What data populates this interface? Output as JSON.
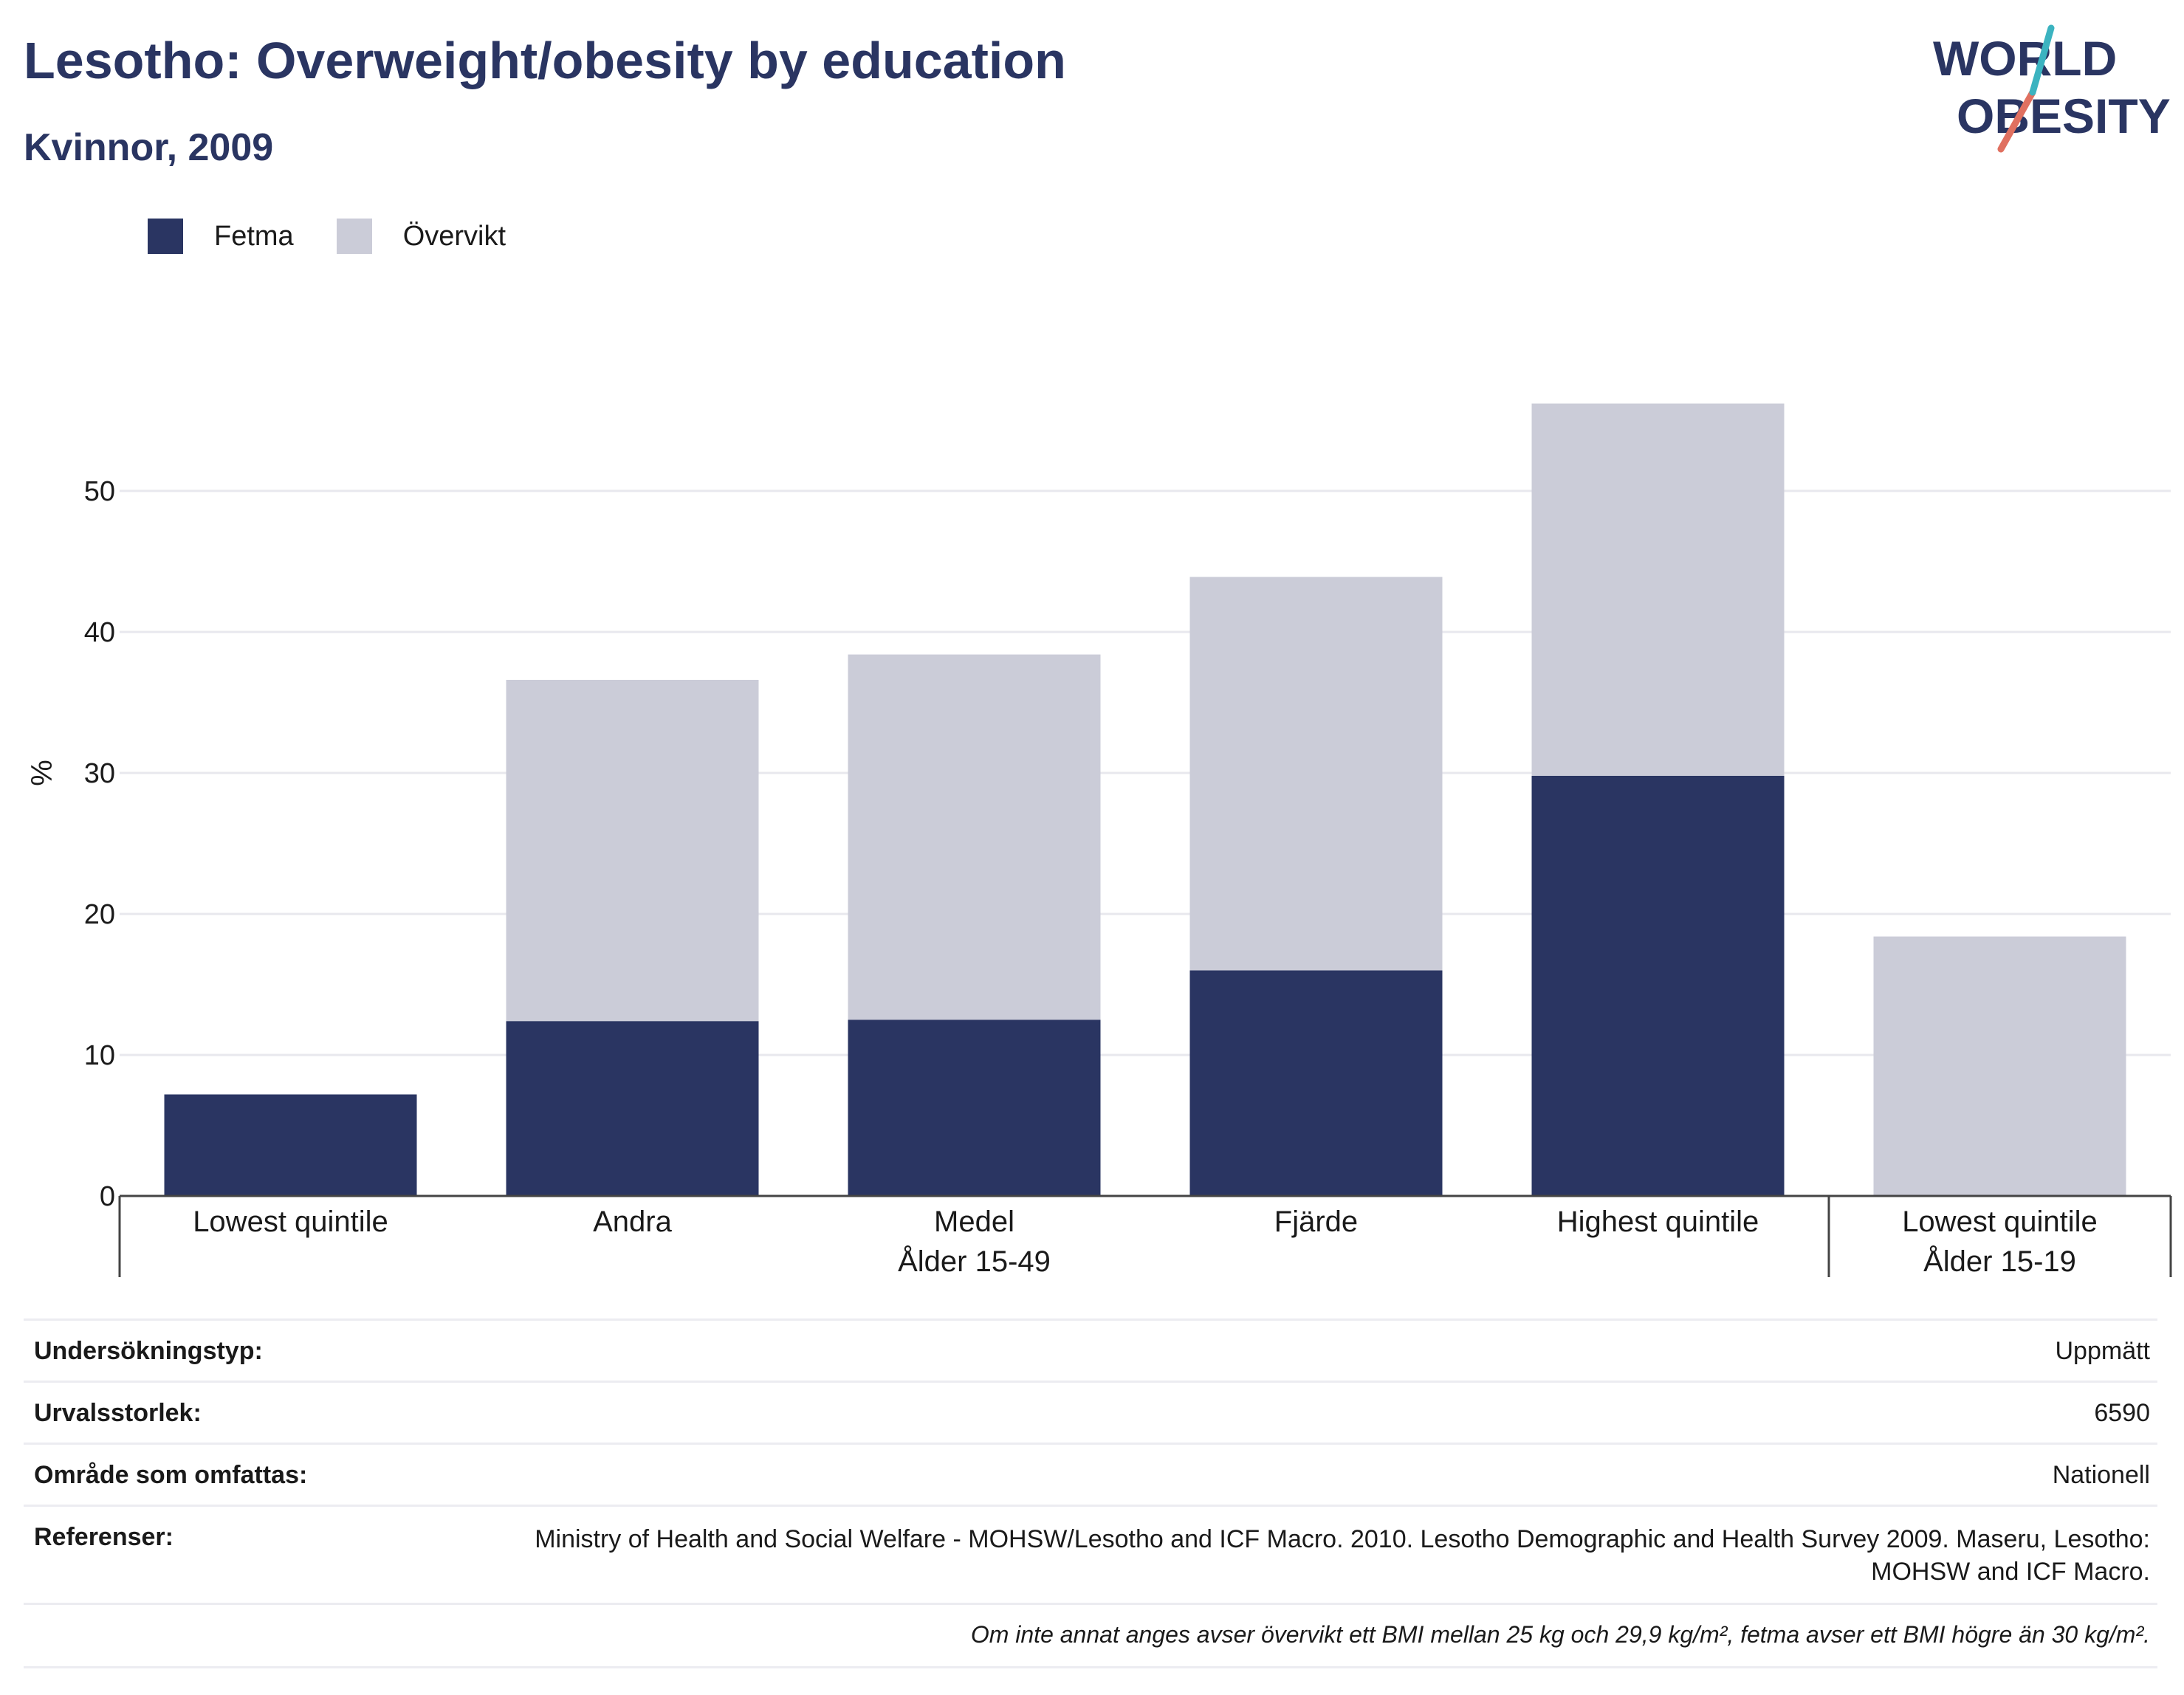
{
  "header": {
    "title": "Lesotho: Overweight/obesity by education",
    "subtitle": "Kvinnor, 2009"
  },
  "logo": {
    "line1": "WORLD",
    "line2": "OBESITY"
  },
  "legend": [
    {
      "label": "Fetma",
      "color": "#2a3562"
    },
    {
      "label": "Övervikt",
      "color": "#cbccd8"
    }
  ],
  "chart_data": {
    "type": "bar",
    "stacked": true,
    "categories": [
      "Lowest quintile",
      "Andra",
      "Medel",
      "Fjärde",
      "Highest quintile",
      "Lowest quintile"
    ],
    "groups": [
      {
        "label": "Ålder 15-49",
        "categories": [
          0,
          1,
          2,
          3,
          4
        ]
      },
      {
        "label": "Ålder 15-19",
        "categories": [
          5
        ]
      }
    ],
    "series": [
      {
        "name": "Fetma",
        "color": "#2a3562",
        "values": [
          7.2,
          12.4,
          12.5,
          16.0,
          29.8,
          0
        ]
      },
      {
        "name": "Övervikt",
        "color": "#cbccd8",
        "values": [
          0,
          24.2,
          25.9,
          27.9,
          26.4,
          18.4
        ]
      }
    ],
    "ylabel": "%",
    "ylim": [
      0,
      60
    ],
    "yticks": [
      0,
      10,
      20,
      30,
      40,
      50
    ],
    "grid": true,
    "legend_position": "top-left"
  },
  "info": {
    "survey_type": {
      "label": "Undersökningstyp:",
      "value": "Uppmätt"
    },
    "sample_size": {
      "label": "Urvalsstorlek:",
      "value": "6590"
    },
    "coverage": {
      "label": "Område som omfattas:",
      "value": "Nationell"
    },
    "references": {
      "label": "Referenser:",
      "value": "Ministry of Health and Social Welfare - MOHSW/Lesotho and ICF Macro. 2010. Lesotho Demographic and Health Survey 2009. Maseru, Lesotho: MOHSW and ICF Macro."
    },
    "note": "Om inte annat anges avser övervikt ett BMI mellan 25 kg och 29,9 kg/m², fetma avser ett BMI högre än 30 kg/m²."
  }
}
